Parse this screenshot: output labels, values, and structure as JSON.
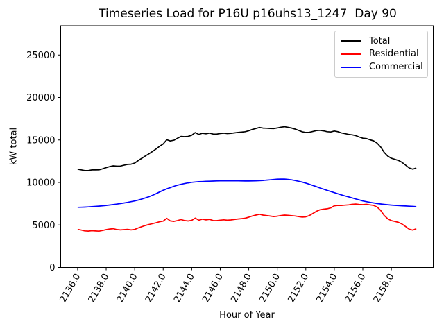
{
  "chart_data": {
    "type": "line",
    "title": "Timeseries Load for P16U p16uhs13_1247  Day 90",
    "xlabel": "Hour of Year",
    "ylabel": "kW total",
    "grid": false,
    "legend_position": "upper right",
    "xlim": [
      2134.8125,
      2160.9375
    ],
    "ylim": [
      0,
      28450
    ],
    "xticks": [
      2136,
      2138,
      2140,
      2142,
      2144,
      2146,
      2148,
      2150,
      2152,
      2154,
      2156,
      2158
    ],
    "xtick_labels": [
      "2136.0",
      "2138.0",
      "2140.0",
      "2142.0",
      "2144.0",
      "2146.0",
      "2148.0",
      "2150.0",
      "2152.0",
      "2154.0",
      "2156.0",
      "2158.0"
    ],
    "xtick_rotation_deg": 60,
    "yticks": [
      0,
      5000,
      10000,
      15000,
      20000,
      25000
    ],
    "ytick_labels": [
      "0",
      "5000",
      "10000",
      "15000",
      "20000",
      "25000"
    ],
    "x": [
      2136.0,
      2136.25,
      2136.5,
      2136.75,
      2137.0,
      2137.25,
      2137.5,
      2137.75,
      2138.0,
      2138.25,
      2138.5,
      2138.75,
      2139.0,
      2139.25,
      2139.5,
      2139.75,
      2140.0,
      2140.25,
      2140.5,
      2140.75,
      2141.0,
      2141.25,
      2141.5,
      2141.75,
      2142.0,
      2142.25,
      2142.5,
      2142.75,
      2143.0,
      2143.25,
      2143.5,
      2143.75,
      2144.0,
      2144.25,
      2144.5,
      2144.75,
      2145.0,
      2145.25,
      2145.5,
      2145.75,
      2146.0,
      2146.25,
      2146.5,
      2146.75,
      2147.0,
      2147.25,
      2147.5,
      2147.75,
      2148.0,
      2148.25,
      2148.5,
      2148.75,
      2149.0,
      2149.25,
      2149.5,
      2149.75,
      2150.0,
      2150.25,
      2150.5,
      2150.75,
      2151.0,
      2151.25,
      2151.5,
      2151.75,
      2152.0,
      2152.25,
      2152.5,
      2152.75,
      2153.0,
      2153.25,
      2153.5,
      2153.75,
      2154.0,
      2154.25,
      2154.5,
      2154.75,
      2155.0,
      2155.25,
      2155.5,
      2155.75,
      2156.0,
      2156.25,
      2156.5,
      2156.75,
      2157.0,
      2157.25,
      2157.5,
      2157.75,
      2158.0,
      2158.25,
      2158.5,
      2158.75,
      2159.0,
      2159.25,
      2159.5,
      2159.75
    ],
    "series": [
      {
        "name": "Total",
        "color": "#000000",
        "values": [
          11560,
          11490,
          11405,
          11405,
          11480,
          11475,
          11490,
          11610,
          11750,
          11870,
          11960,
          11915,
          11935,
          12030,
          12135,
          12155,
          12290,
          12580,
          12850,
          13120,
          13370,
          13650,
          13940,
          14260,
          14530,
          15030,
          14880,
          14970,
          15200,
          15420,
          15390,
          15420,
          15560,
          15870,
          15650,
          15800,
          15730,
          15810,
          15695,
          15690,
          15760,
          15805,
          15755,
          15780,
          15840,
          15895,
          15930,
          15975,
          16090,
          16240,
          16355,
          16475,
          16400,
          16385,
          16360,
          16340,
          16420,
          16510,
          16560,
          16490,
          16410,
          16290,
          16130,
          15970,
          15890,
          15900,
          16010,
          16110,
          16140,
          16070,
          15980,
          15940,
          16060,
          15980,
          15830,
          15750,
          15660,
          15610,
          15520,
          15350,
          15210,
          15170,
          15020,
          14900,
          14630,
          14180,
          13540,
          13100,
          12850,
          12720,
          12590,
          12365,
          12040,
          11715,
          11570,
          11710
        ]
      },
      {
        "name": "Residential",
        "color": "#ff0000",
        "values": [
          4480,
          4400,
          4300,
          4280,
          4330,
          4290,
          4270,
          4350,
          4450,
          4520,
          4560,
          4460,
          4420,
          4450,
          4480,
          4420,
          4470,
          4650,
          4800,
          4940,
          5050,
          5160,
          5260,
          5380,
          5450,
          5780,
          5480,
          5420,
          5520,
          5640,
          5520,
          5470,
          5540,
          5810,
          5560,
          5690,
          5600,
          5660,
          5530,
          5510,
          5570,
          5610,
          5560,
          5590,
          5650,
          5710,
          5750,
          5800,
          5920,
          6060,
          6160,
          6260,
          6160,
          6110,
          6050,
          5990,
          6030,
          6110,
          6160,
          6130,
          6100,
          6060,
          5990,
          5930,
          5960,
          6110,
          6360,
          6610,
          6790,
          6860,
          6910,
          7010,
          7260,
          7310,
          7290,
          7330,
          7360,
          7430,
          7460,
          7410,
          7390,
          7430,
          7360,
          7310,
          7110,
          6710,
          6120,
          5720,
          5510,
          5410,
          5310,
          5110,
          4810,
          4510,
          4390,
          4560
        ]
      },
      {
        "name": "Commercial",
        "color": "#0000ff",
        "values": [
          7080,
          7090,
          7105,
          7125,
          7150,
          7185,
          7220,
          7260,
          7300,
          7350,
          7400,
          7455,
          7515,
          7580,
          7655,
          7735,
          7820,
          7930,
          8050,
          8180,
          8320,
          8490,
          8680,
          8880,
          9080,
          9250,
          9400,
          9550,
          9680,
          9780,
          9870,
          9950,
          10020,
          10060,
          10090,
          10110,
          10130,
          10150,
          10165,
          10180,
          10190,
          10195,
          10195,
          10190,
          10190,
          10185,
          10180,
          10175,
          10170,
          10180,
          10195,
          10215,
          10240,
          10275,
          10310,
          10350,
          10390,
          10400,
          10400,
          10360,
          10310,
          10230,
          10140,
          10040,
          9930,
          9790,
          9650,
          9500,
          9350,
          9210,
          9070,
          8930,
          8800,
          8670,
          8540,
          8420,
          8300,
          8180,
          8060,
          7940,
          7820,
          7740,
          7660,
          7590,
          7520,
          7470,
          7420,
          7380,
          7340,
          7310,
          7280,
          7255,
          7230,
          7205,
          7180,
          7150
        ]
      }
    ]
  }
}
